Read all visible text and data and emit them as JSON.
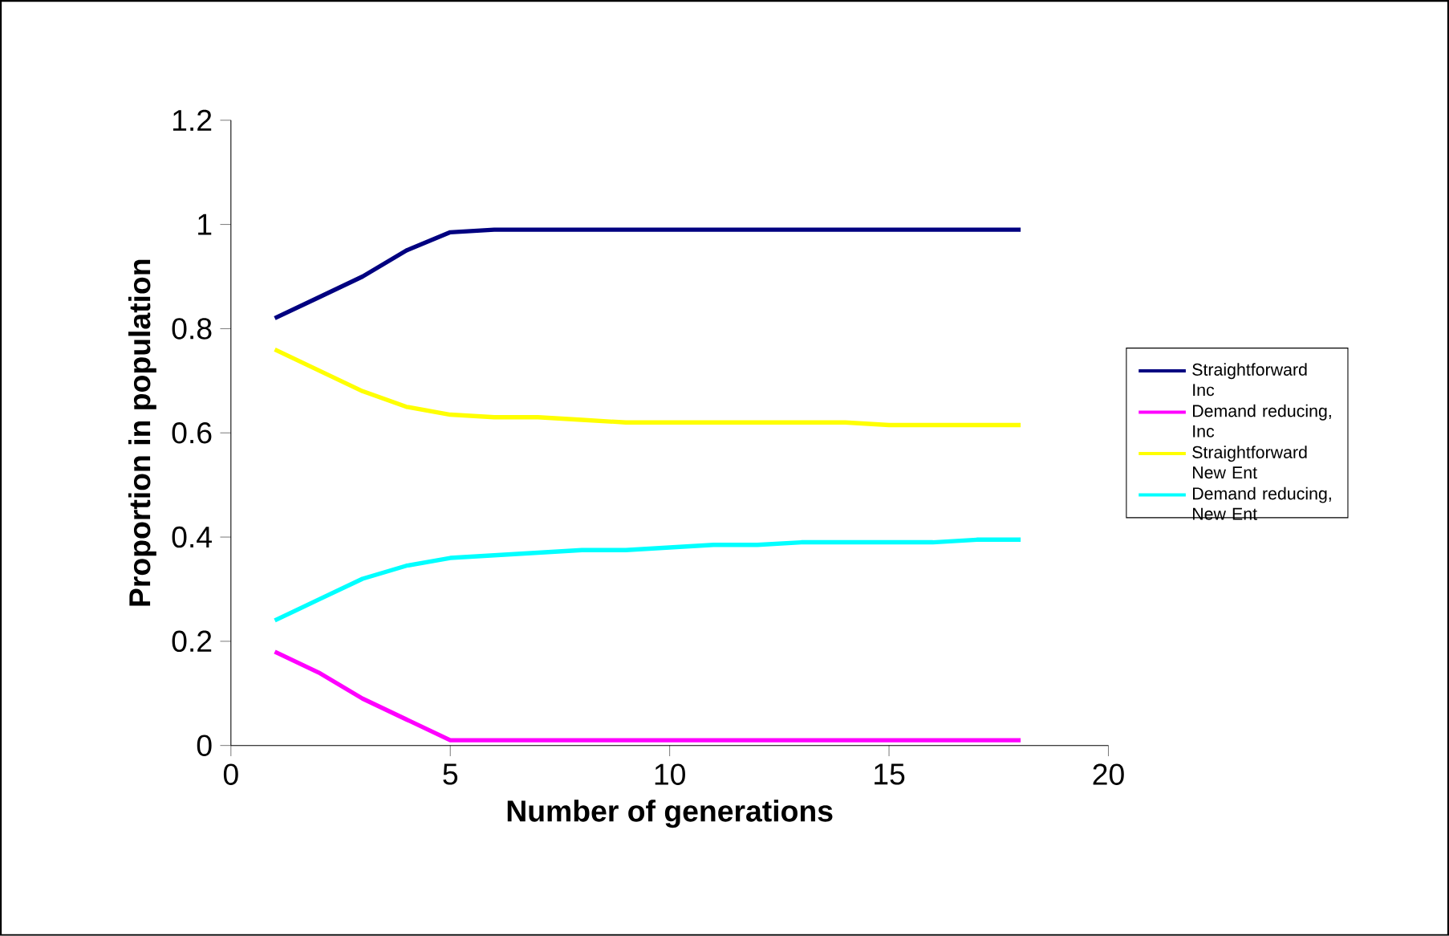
{
  "chart_data": {
    "type": "line",
    "xlabel": "Number of generations",
    "ylabel": "Proportion in population",
    "x": [
      1,
      2,
      3,
      4,
      5,
      6,
      7,
      8,
      9,
      10,
      11,
      12,
      13,
      14,
      15,
      16,
      17,
      18
    ],
    "series": [
      {
        "name": "Straightforward Inc",
        "color": "#000080",
        "values": [
          0.82,
          0.86,
          0.9,
          0.95,
          0.985,
          0.99,
          0.99,
          0.99,
          0.99,
          0.99,
          0.99,
          0.99,
          0.99,
          0.99,
          0.99,
          0.99,
          0.99,
          0.99
        ]
      },
      {
        "name": "Demand reducing, Inc",
        "color": "#ff00ff",
        "values": [
          0.18,
          0.14,
          0.09,
          0.05,
          0.01,
          0.01,
          0.01,
          0.01,
          0.01,
          0.01,
          0.01,
          0.01,
          0.01,
          0.01,
          0.01,
          0.01,
          0.01,
          0.01
        ]
      },
      {
        "name": "Straightforward New Ent",
        "color": "#ffff00",
        "values": [
          0.76,
          0.72,
          0.68,
          0.65,
          0.635,
          0.63,
          0.63,
          0.625,
          0.62,
          0.62,
          0.62,
          0.62,
          0.62,
          0.62,
          0.615,
          0.615,
          0.615,
          0.615
        ]
      },
      {
        "name": "Demand reducing, New Ent",
        "color": "#00ffff",
        "values": [
          0.24,
          0.28,
          0.32,
          0.345,
          0.36,
          0.365,
          0.37,
          0.375,
          0.375,
          0.38,
          0.385,
          0.385,
          0.39,
          0.39,
          0.39,
          0.39,
          0.395,
          0.395
        ]
      }
    ],
    "xlim": [
      0,
      20
    ],
    "xticks": [
      0,
      5,
      10,
      15,
      20
    ],
    "ylim": [
      0,
      1.2
    ],
    "yticks": [
      0,
      0.2,
      0.4,
      0.6,
      0.8,
      1,
      1.2
    ],
    "grid": false,
    "legend": "right",
    "marker": "none",
    "line_style": "solid"
  }
}
